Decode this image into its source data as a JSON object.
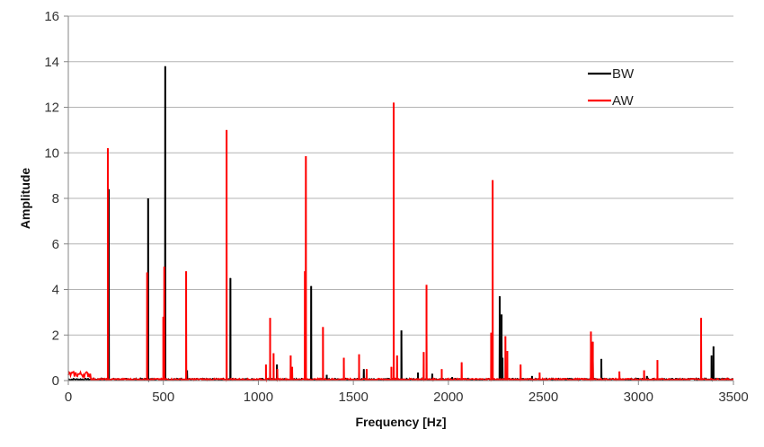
{
  "chart_data": {
    "type": "line",
    "title": "",
    "xlabel": "Frequency [Hz]",
    "ylabel": "Amplitude",
    "xlim": [
      0,
      3500
    ],
    "ylim": [
      0,
      16
    ],
    "xticks": [
      0,
      500,
      1000,
      1500,
      2000,
      2500,
      3000,
      3500
    ],
    "yticks": [
      0,
      2,
      4,
      6,
      8,
      10,
      12,
      14,
      16
    ],
    "grid": "horizontal",
    "legend_position": "top-right",
    "series": [
      {
        "name": "BW",
        "color": "#000000",
        "peaks": [
          [
            213,
            8.4
          ],
          [
            420,
            8.0
          ],
          [
            510,
            13.8
          ],
          [
            625,
            0.45
          ],
          [
            853,
            4.5
          ],
          [
            1098,
            0.7
          ],
          [
            1278,
            4.15
          ],
          [
            1360,
            0.25
          ],
          [
            1555,
            0.5
          ],
          [
            1753,
            2.2
          ],
          [
            1840,
            0.35
          ],
          [
            1915,
            0.3
          ],
          [
            2020,
            0.15
          ],
          [
            2270,
            3.7
          ],
          [
            2280,
            2.9
          ],
          [
            2285,
            1.0
          ],
          [
            2440,
            0.2
          ],
          [
            2760,
            1.7
          ],
          [
            2805,
            0.95
          ],
          [
            3045,
            0.2
          ],
          [
            3385,
            1.1
          ],
          [
            3395,
            1.5
          ]
        ]
      },
      {
        "name": "AW",
        "color": "#ff0000",
        "peaks": [
          [
            208,
            10.2
          ],
          [
            415,
            4.75
          ],
          [
            500,
            2.8
          ],
          [
            505,
            5.0
          ],
          [
            620,
            4.8
          ],
          [
            833,
            11.0
          ],
          [
            1040,
            0.7
          ],
          [
            1062,
            2.75
          ],
          [
            1080,
            1.2
          ],
          [
            1100,
            0.5
          ],
          [
            1170,
            1.1
          ],
          [
            1178,
            0.6
          ],
          [
            1245,
            4.8
          ],
          [
            1250,
            9.85
          ],
          [
            1340,
            2.35
          ],
          [
            1450,
            1.0
          ],
          [
            1530,
            1.15
          ],
          [
            1570,
            0.5
          ],
          [
            1700,
            0.6
          ],
          [
            1712,
            12.2
          ],
          [
            1730,
            1.1
          ],
          [
            1870,
            1.25
          ],
          [
            1885,
            4.2
          ],
          [
            1965,
            0.5
          ],
          [
            2070,
            0.8
          ],
          [
            2225,
            2.1
          ],
          [
            2233,
            8.8
          ],
          [
            2300,
            1.95
          ],
          [
            2310,
            1.3
          ],
          [
            2380,
            0.7
          ],
          [
            2480,
            0.35
          ],
          [
            2750,
            2.15
          ],
          [
            2760,
            1.7
          ],
          [
            2900,
            0.4
          ],
          [
            3030,
            0.45
          ],
          [
            3100,
            0.9
          ],
          [
            3330,
            2.75
          ]
        ]
      }
    ]
  }
}
